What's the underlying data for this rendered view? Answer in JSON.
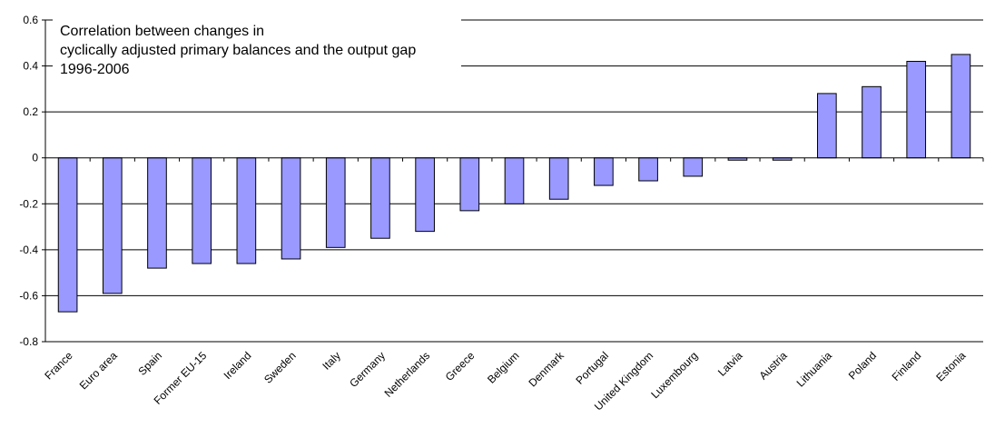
{
  "chart_data": {
    "type": "bar",
    "title_lines": [
      "Correlation between changes in",
      "cyclically adjusted primary balances and the output gap",
      "1996-2006"
    ],
    "categories": [
      "France",
      "Euro area",
      "Spain",
      "Former EU-15",
      "Ireland",
      "Sweden",
      "Italy",
      "Germany",
      "Netherlands",
      "Greece",
      "Belgium",
      "Denmark",
      "Portugal",
      "United Kingdom",
      "Luxembourg",
      "Latvia",
      "Austria",
      "Lithuania",
      "Poland",
      "Finland",
      "Estonia"
    ],
    "values": [
      -0.67,
      -0.59,
      -0.48,
      -0.46,
      -0.46,
      -0.44,
      -0.39,
      -0.35,
      -0.32,
      -0.23,
      -0.2,
      -0.18,
      -0.12,
      -0.1,
      -0.08,
      -0.01,
      -0.01,
      0.28,
      0.31,
      0.42,
      0.45
    ],
    "ylim": [
      -0.8,
      0.6
    ],
    "yticks": [
      "0.6",
      "0.4",
      "0.2",
      "0",
      "-0.2",
      "-0.4",
      "-0.6",
      "-0.8"
    ],
    "ytick_values": [
      0.6,
      0.4,
      0.2,
      0,
      -0.2,
      -0.4,
      -0.6,
      -0.8
    ],
    "grid": true,
    "colors": {
      "bar_fill": "#9999ff",
      "bar_stroke": "#000000",
      "grid": "#000000"
    }
  }
}
